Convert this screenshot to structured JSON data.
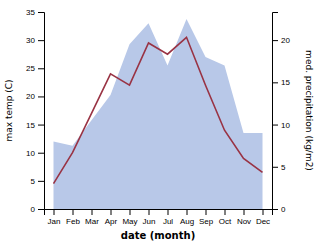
{
  "chart_data": {
    "type": "line",
    "xlabel": "date (month)",
    "ylabel": "max temp (C)",
    "y2label": "med. precipitation (kg/m2)",
    "categories": [
      "Jan",
      "Feb",
      "Mar",
      "Apr",
      "May",
      "Jun",
      "Jul",
      "Aug",
      "Sep",
      "Oct",
      "Nov",
      "Dec"
    ],
    "series": [
      {
        "type": "area",
        "axis": "y2",
        "color": "#b8c8e8",
        "values": [
          8.0,
          7.5,
          10.5,
          13.5,
          19.5,
          22.0,
          17.0,
          22.5,
          18.0,
          17.0,
          9.0,
          9.0
        ]
      },
      {
        "type": "line",
        "color": "#993344",
        "values": [
          4.5,
          10.0,
          17.0,
          24.0,
          22.0,
          29.5,
          27.5,
          30.5,
          22.0,
          14.0,
          9.0,
          6.5
        ]
      }
    ],
    "ylim": [
      0,
      35
    ],
    "yticks": [
      0,
      5,
      10,
      15,
      20,
      25,
      30,
      35
    ],
    "y2lim": [
      0,
      23.33
    ],
    "y2ticks": [
      0,
      5,
      10,
      15,
      20
    ]
  }
}
